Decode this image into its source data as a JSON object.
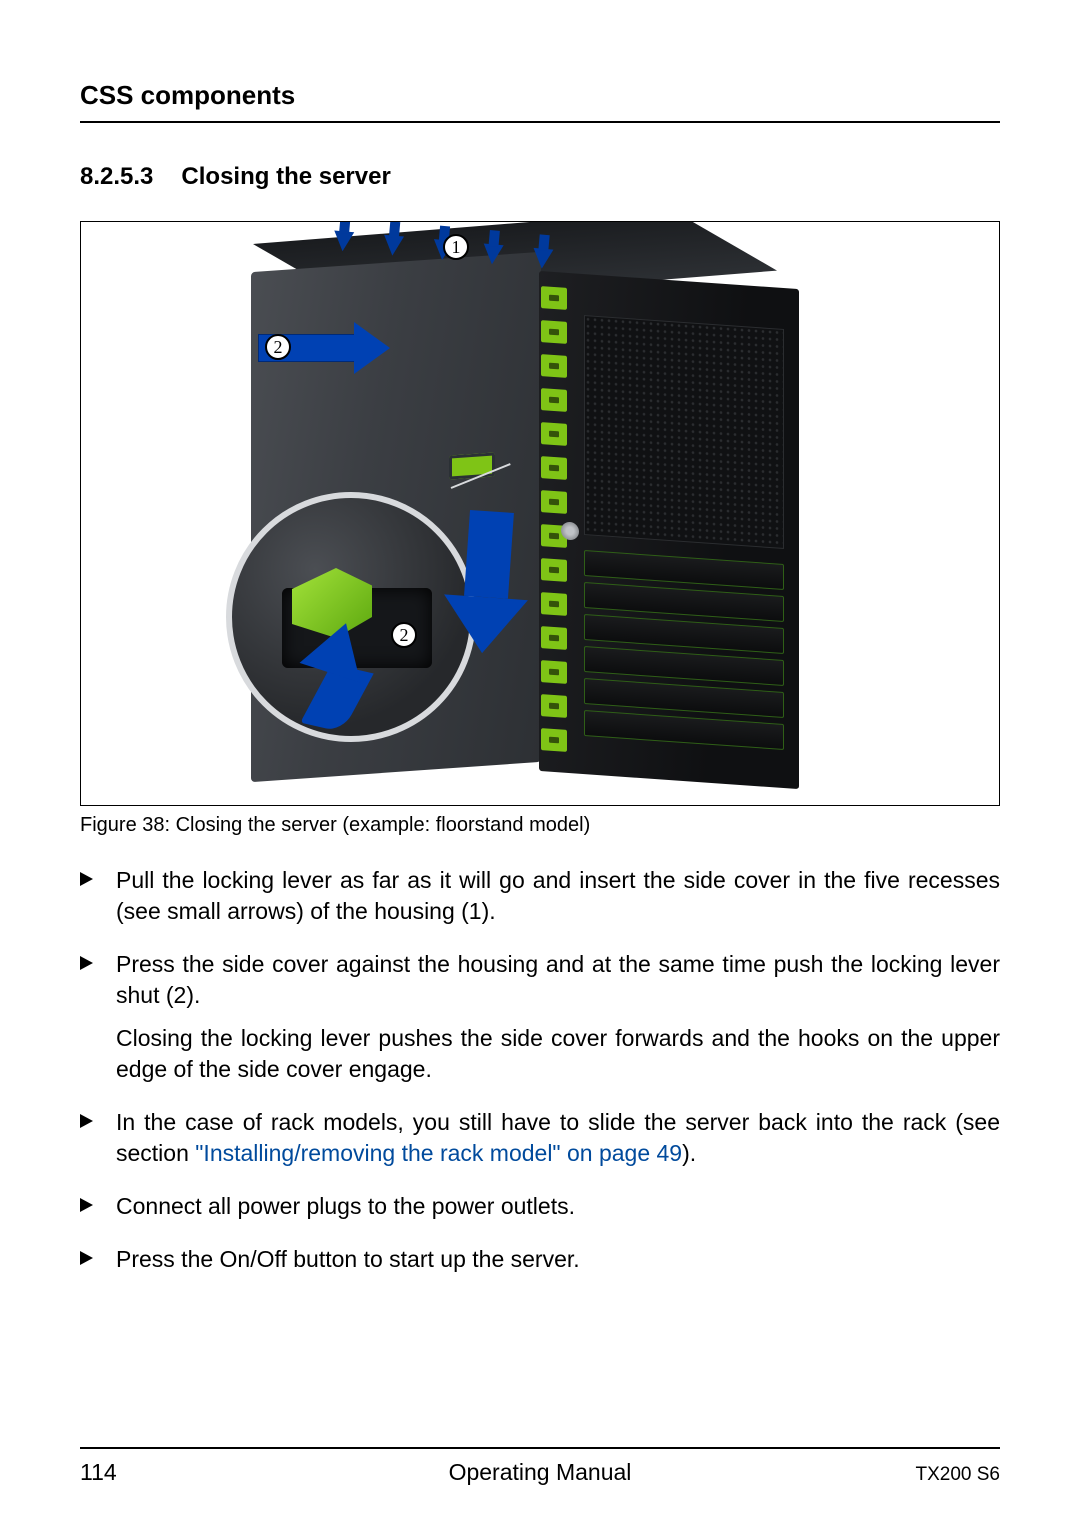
{
  "header": {
    "title": "CSS components"
  },
  "section": {
    "number": "8.2.5.3",
    "title": "Closing the server"
  },
  "figure": {
    "caption": "Figure 38: Closing the server (example: floorstand model)",
    "callouts": {
      "c1": "1",
      "c2a": "2",
      "c2b": "2"
    },
    "colors": {
      "arrow_blue": "#0041b3",
      "accent_green": "#7fc416",
      "server_body_dark": "#2d3034",
      "server_body_light": "#4a4d52",
      "server_front": "#101113",
      "magnifier_ring": "#d8dadd"
    }
  },
  "steps": {
    "s1": "Pull the locking lever as far as it will go and insert the side cover in the five recesses (see small arrows) of the housing (1).",
    "s2a": "Press the side cover against the housing and at the same time push the locking lever shut (2).",
    "s2b": "Closing the locking lever pushes the side cover forwards and the hooks on the upper edge of the side cover engage.",
    "s3_pre": "In the case of rack models, you still have to slide the server back into the rack (see section ",
    "s3_link": "\"Installing/removing the rack model\" on page 49",
    "s3_post": ").",
    "s4": "Connect all power plugs to the power outlets.",
    "s5": "Press the On/Off button to start up the server."
  },
  "footer": {
    "page_number": "114",
    "doc_title": "Operating Manual",
    "model": "TX200 S6"
  }
}
